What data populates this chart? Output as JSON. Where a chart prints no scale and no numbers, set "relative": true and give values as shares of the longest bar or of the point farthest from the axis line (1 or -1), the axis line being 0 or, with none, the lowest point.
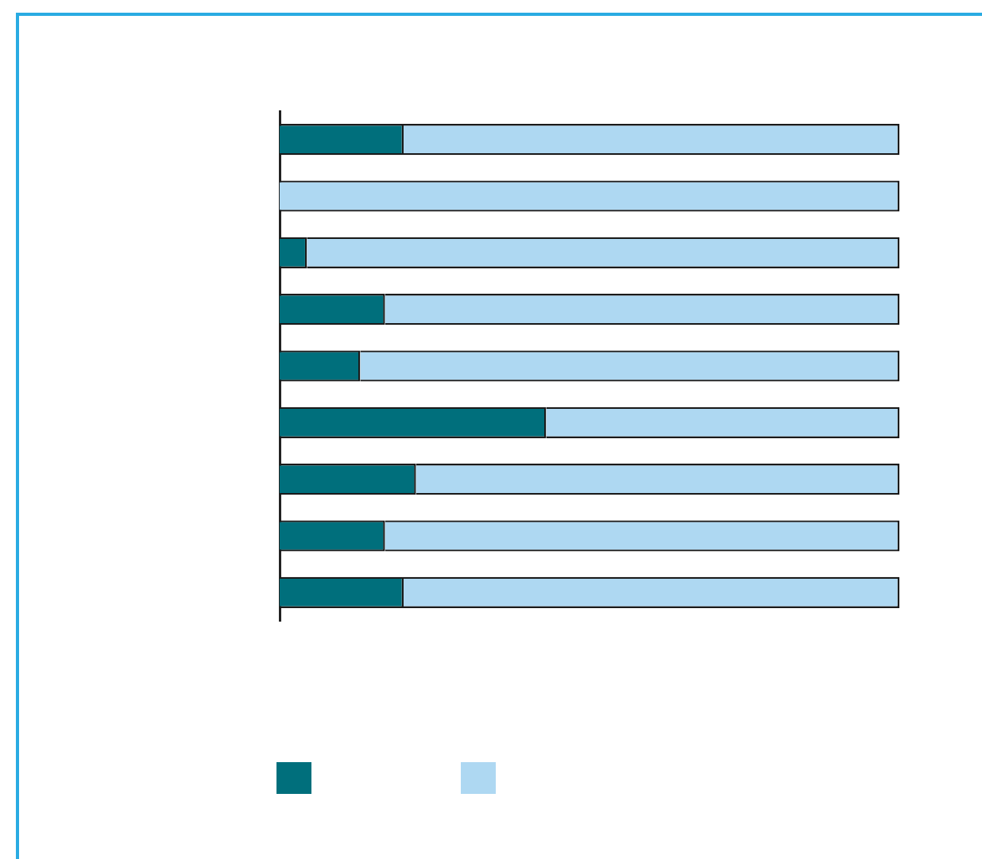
{
  "chart_data": {
    "type": "bar",
    "orientation": "horizontal",
    "stacked": true,
    "relative": true,
    "legend": false,
    "grid": false,
    "categories": [
      null,
      null,
      null,
      null,
      null,
      null,
      null,
      null,
      null
    ],
    "series": [
      {
        "color": "#006f7c",
        "values": [
          0.2,
          0,
          0.044,
          0.17,
          0.13,
          0.43,
          0.22,
          0.17,
          0.2
        ]
      },
      {
        "color": "#aed8f2",
        "values": [
          0.8,
          1,
          0.956,
          0.83,
          0.87,
          0.57,
          0.78,
          0.83,
          0.8
        ]
      }
    ]
  }
}
